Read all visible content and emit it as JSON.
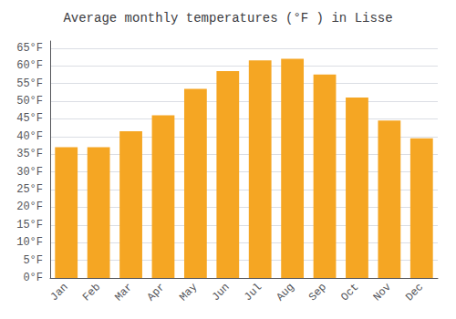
{
  "chart_data": {
    "type": "bar",
    "title": "Average monthly temperatures (°F ) in Lisse",
    "categories": [
      "Jan",
      "Feb",
      "Mar",
      "Apr",
      "May",
      "Jun",
      "Jul",
      "Aug",
      "Sep",
      "Oct",
      "Nov",
      "Dec"
    ],
    "values": [
      37,
      37,
      41.5,
      46,
      53.5,
      58.5,
      61.5,
      62,
      57.5,
      51,
      44.5,
      39.5
    ],
    "color": "#F5A623",
    "ylim": [
      0,
      67
    ],
    "yticks": [
      {
        "value": 0,
        "label": "0°F"
      },
      {
        "value": 5,
        "label": "5°F"
      },
      {
        "value": 10,
        "label": "10°F"
      },
      {
        "value": 15,
        "label": "15°F"
      },
      {
        "value": 20,
        "label": "20°F"
      },
      {
        "value": 25,
        "label": "25°F"
      },
      {
        "value": 30,
        "label": "30°F"
      },
      {
        "value": 35,
        "label": "35°F"
      },
      {
        "value": 40,
        "label": "40°F"
      },
      {
        "value": 45,
        "label": "45°F"
      },
      {
        "value": 50,
        "label": "50°F"
      },
      {
        "value": 55,
        "label": "55°F"
      },
      {
        "value": 60,
        "label": "60°F"
      },
      {
        "value": 65,
        "label": "65°F"
      }
    ],
    "grid": true
  }
}
